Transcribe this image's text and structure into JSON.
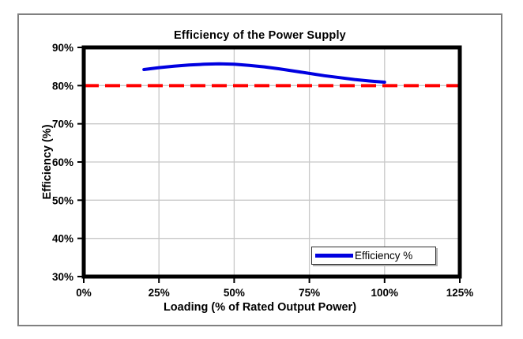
{
  "chart_data": {
    "type": "line",
    "title": "Efficiency of the Power Supply",
    "xlabel": "Loading (% of Rated Output Power)",
    "ylabel": "Efficiency (%)",
    "xlim": [
      0,
      125
    ],
    "ylim": [
      30,
      90
    ],
    "x_ticks": [
      0,
      25,
      50,
      75,
      100,
      125
    ],
    "x_tick_labels": [
      "0%",
      "25%",
      "50%",
      "75%",
      "100%",
      "125%"
    ],
    "y_ticks": [
      30,
      40,
      50,
      60,
      70,
      80,
      90
    ],
    "y_tick_labels": [
      "30%",
      "40%",
      "50%",
      "60%",
      "70%",
      "80%",
      "90%"
    ],
    "grid": true,
    "legend": {
      "position": "bottom-right",
      "entries": [
        {
          "label": "Efficiency %",
          "color": "#0000e0",
          "style": "solid"
        }
      ]
    },
    "series": [
      {
        "name": "Efficiency %",
        "color": "#0000e0",
        "width": 4,
        "x": [
          20,
          25,
          30,
          35,
          40,
          45,
          50,
          55,
          60,
          65,
          70,
          75,
          80,
          85,
          90,
          95,
          100
        ],
        "y": [
          84.2,
          84.7,
          85.1,
          85.4,
          85.6,
          85.7,
          85.6,
          85.3,
          84.9,
          84.4,
          83.8,
          83.2,
          82.6,
          82.1,
          81.6,
          81.2,
          80.9
        ]
      }
    ],
    "reference_line": {
      "y": 80,
      "color": "#ff0000",
      "style": "dashed",
      "width": 4
    }
  },
  "colors": {
    "gridline": "#c8c8c8",
    "plot_border": "#000000",
    "frame_border": "#808080",
    "background": "#ffffff",
    "text": "#000000"
  }
}
